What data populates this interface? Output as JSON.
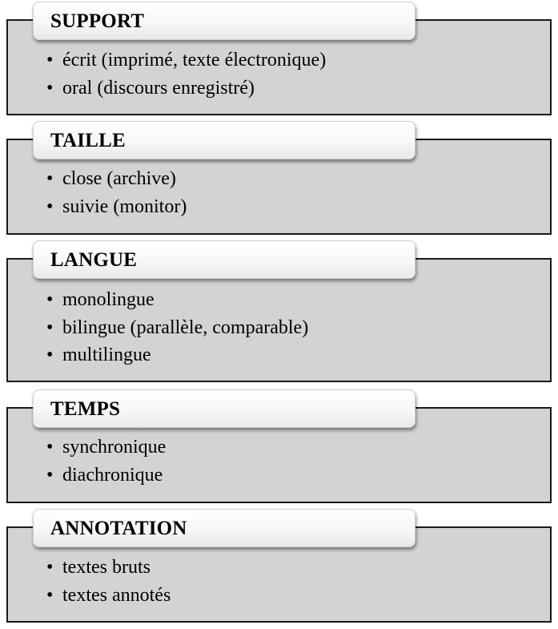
{
  "sections": [
    {
      "title": "SUPPORT",
      "items": [
        "écrit (imprimé, texte électronique)",
        "oral (discours enregistré)"
      ]
    },
    {
      "title": "TAILLE",
      "items": [
        "close (archive)",
        "suivie (monitor)"
      ]
    },
    {
      "title": "LANGUE",
      "items": [
        "monolingue",
        "bilingue (parallèle, comparable)",
        "multilingue"
      ]
    },
    {
      "title": "TEMPS",
      "items": [
        "synchronique",
        "diachronique"
      ]
    },
    {
      "title": "ANNOTATION",
      "items": [
        "textes bruts",
        "textes annotés"
      ]
    }
  ],
  "bullet": "•",
  "colors": {
    "box_fill": "#d3d3d3",
    "box_border": "#1a1a1a",
    "tab_fill": "#ffffff"
  }
}
